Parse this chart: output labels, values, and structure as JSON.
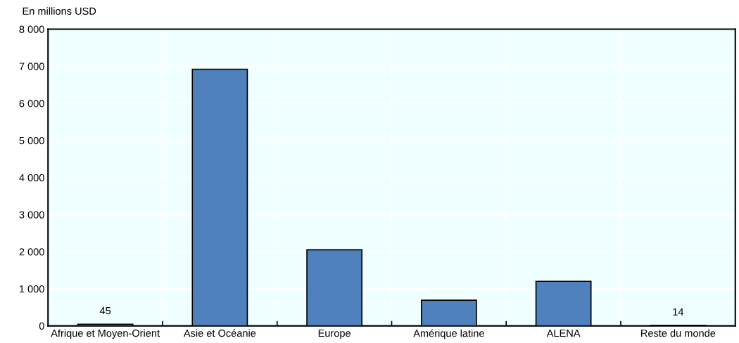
{
  "chart_data": {
    "type": "bar",
    "ylabel": "En millions USD",
    "categories": [
      "Afrique et Moyen-Orient",
      "Asie et Océanie",
      "Europe",
      "Amérique latine",
      "ALENA",
      "Reste du monde"
    ],
    "values": [
      45,
      6920,
      2050,
      690,
      1200,
      14
    ],
    "value_labels": [
      "45",
      null,
      null,
      null,
      null,
      "14"
    ],
    "color": "#4f81bd",
    "ylim": [
      0,
      8000
    ],
    "yticks": [
      0,
      {
        "value": 1000,
        "label": "1 000"
      },
      {
        "value": 2000,
        "label": "2 000"
      },
      {
        "value": 3000,
        "label": "3 000"
      },
      {
        "value": 4000,
        "label": "4 000"
      },
      {
        "value": 5000,
        "label": "5 000"
      },
      {
        "value": 6000,
        "label": "6 000"
      },
      {
        "value": 7000,
        "label": "7 000"
      },
      {
        "value": 8000,
        "label": "8 000"
      }
    ],
    "grid": true
  }
}
